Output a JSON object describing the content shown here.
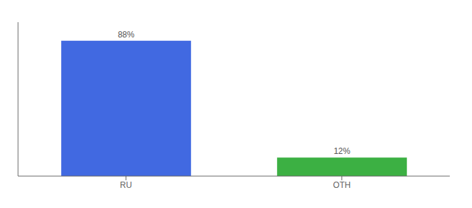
{
  "chart_data": {
    "type": "bar",
    "categories": [
      "RU",
      "OTH"
    ],
    "values": [
      88,
      12
    ],
    "value_labels": [
      "88%",
      "12%"
    ],
    "colors": [
      "#4169e1",
      "#3cb043"
    ],
    "ylim": [
      0,
      100
    ],
    "data_labels": true,
    "tick_labels": "x"
  }
}
